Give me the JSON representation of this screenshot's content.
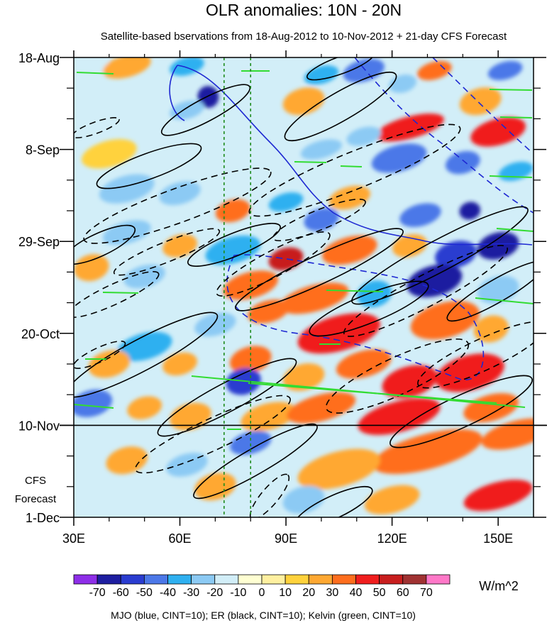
{
  "chart_data": {
    "type": "heatmap",
    "title": "OLR anomalies: 10N - 20N",
    "subtitle": "Satellite-based bservations from 18-Aug-2012 to 10-Nov-2012 + 21-day CFS Forecast",
    "x_ticks": [
      {
        "value": 30,
        "label": "30E"
      },
      {
        "value": 60,
        "label": "60E"
      },
      {
        "value": 90,
        "label": "90E"
      },
      {
        "value": 120,
        "label": "120E"
      },
      {
        "value": 150,
        "label": "150E"
      }
    ],
    "x_range": [
      30,
      160
    ],
    "y_ticks": [
      {
        "day": 0,
        "label": "18-Aug"
      },
      {
        "day": 21,
        "label": "8-Sep"
      },
      {
        "day": 42,
        "label": "29-Sep"
      },
      {
        "day": 63,
        "label": "20-Oct"
      },
      {
        "day": 84,
        "label": "10-Nov"
      },
      {
        "day": 105,
        "label": "1-Dec"
      }
    ],
    "y_range_days": [
      0,
      105
    ],
    "forecast_start_day": 84,
    "forecast_label_lines": [
      "CFS",
      "Forecast"
    ],
    "reference_lines_lon": [
      72.5,
      80
    ],
    "colorbar": {
      "unit": "W/m^2",
      "labels": [
        "-70",
        "-60",
        "-50",
        "-40",
        "-30",
        "-20",
        "-10",
        "0",
        "10",
        "20",
        "30",
        "40",
        "50",
        "60",
        "70"
      ],
      "colors": [
        "#8e2ee8",
        "#1e1ea0",
        "#2a3cd0",
        "#4c78e8",
        "#2fb0f0",
        "#8ccaf4",
        "#d2eef8",
        "#ffffd2",
        "#fff0a0",
        "#ffd23c",
        "#ffa832",
        "#ff6e1e",
        "#f01e1e",
        "#c81e1e",
        "#a03232",
        "#ff78c8"
      ]
    },
    "footer": "MJO (blue, CINT=10); ER (black, CINT=10); Kelvin (green, CINT=10)",
    "contour_colors": {
      "mjo": "#1e28d2",
      "er": "#000000",
      "kelvin": "#32dc32"
    },
    "blobs": [
      {
        "lon": 35,
        "day": 3,
        "rx": 6,
        "ry": 2,
        "v": -12
      },
      {
        "lon": 45,
        "day": 2,
        "rx": 7,
        "ry": 2.5,
        "v": 22
      },
      {
        "lon": 62,
        "day": 2,
        "rx": 5,
        "ry": 2,
        "v": -35
      },
      {
        "lon": 68,
        "day": 9,
        "rx": 3,
        "ry": 2.5,
        "v": -62
      },
      {
        "lon": 62,
        "day": 12,
        "rx": 5,
        "ry": 2,
        "v": -25
      },
      {
        "lon": 78,
        "day": 5,
        "rx": 6,
        "ry": 3,
        "v": -18
      },
      {
        "lon": 95,
        "day": 10,
        "rx": 6,
        "ry": 3,
        "v": 25
      },
      {
        "lon": 100,
        "day": 4,
        "rx": 5,
        "ry": 2,
        "v": -40
      },
      {
        "lon": 112,
        "day": 3,
        "rx": 6,
        "ry": 2.5,
        "v": -45
      },
      {
        "lon": 123,
        "day": 6,
        "rx": 4,
        "ry": 2,
        "v": -28
      },
      {
        "lon": 132,
        "day": 3,
        "rx": 5,
        "ry": 2,
        "v": 30
      },
      {
        "lon": 152,
        "day": 3,
        "rx": 5,
        "ry": 2,
        "v": -45
      },
      {
        "lon": 145,
        "day": 10,
        "rx": 6,
        "ry": 3,
        "v": 22
      },
      {
        "lon": 125,
        "day": 16,
        "rx": 10,
        "ry": 2.5,
        "v": 42
      },
      {
        "lon": 150,
        "day": 17,
        "rx": 8,
        "ry": 3,
        "v": 48
      },
      {
        "lon": 112,
        "day": 18,
        "rx": 5,
        "ry": 2,
        "v": -22
      },
      {
        "lon": 100,
        "day": 21,
        "rx": 6,
        "ry": 2,
        "v": -30
      },
      {
        "lon": 122,
        "day": 23,
        "rx": 8,
        "ry": 3,
        "v": -48
      },
      {
        "lon": 140,
        "day": 24,
        "rx": 5,
        "ry": 2.5,
        "v": -45
      },
      {
        "lon": 155,
        "day": 26,
        "rx": 5,
        "ry": 2,
        "v": -35
      },
      {
        "lon": 40,
        "day": 22,
        "rx": 8,
        "ry": 3,
        "v": 14
      },
      {
        "lon": 45,
        "day": 30,
        "rx": 8,
        "ry": 3,
        "v": -22
      },
      {
        "lon": 60,
        "day": 31,
        "rx": 6,
        "ry": 2.5,
        "v": -28
      },
      {
        "lon": 75,
        "day": 35,
        "rx": 5,
        "ry": 2.5,
        "v": 30
      },
      {
        "lon": 90,
        "day": 33,
        "rx": 5,
        "ry": 2,
        "v": -32
      },
      {
        "lon": 108,
        "day": 32,
        "rx": 6,
        "ry": 2.5,
        "v": 24
      },
      {
        "lon": 128,
        "day": 36,
        "rx": 6,
        "ry": 2.5,
        "v": -42
      },
      {
        "lon": 142,
        "day": 35,
        "rx": 3,
        "ry": 2,
        "v": -65
      },
      {
        "lon": 100,
        "day": 37,
        "rx": 5,
        "ry": 2.5,
        "v": -45
      },
      {
        "lon": 45,
        "day": 40,
        "rx": 7,
        "ry": 2.5,
        "v": -30
      },
      {
        "lon": 60,
        "day": 43,
        "rx": 5,
        "ry": 2.5,
        "v": 20
      },
      {
        "lon": 75,
        "day": 44,
        "rx": 8,
        "ry": 3,
        "v": -38
      },
      {
        "lon": 90,
        "day": 46,
        "rx": 5,
        "ry": 2.5,
        "v": 55
      },
      {
        "lon": 108,
        "day": 44,
        "rx": 8,
        "ry": 3,
        "v": 35
      },
      {
        "lon": 125,
        "day": 43,
        "rx": 5,
        "ry": 2.5,
        "v": 28
      },
      {
        "lon": 138,
        "day": 45,
        "rx": 6,
        "ry": 3,
        "v": -55
      },
      {
        "lon": 150,
        "day": 43,
        "rx": 6,
        "ry": 3,
        "v": -68
      },
      {
        "lon": 35,
        "day": 48,
        "rx": 5,
        "ry": 3,
        "v": 28
      },
      {
        "lon": 50,
        "day": 50,
        "rx": 6,
        "ry": 2.5,
        "v": -22
      },
      {
        "lon": 80,
        "day": 52,
        "rx": 8,
        "ry": 3,
        "v": 38
      },
      {
        "lon": 98,
        "day": 55,
        "rx": 10,
        "ry": 3,
        "v": 35
      },
      {
        "lon": 115,
        "day": 54,
        "rx": 5,
        "ry": 3,
        "v": -35
      },
      {
        "lon": 132,
        "day": 51,
        "rx": 8,
        "ry": 3.5,
        "v": -62
      },
      {
        "lon": 150,
        "day": 53,
        "rx": 6,
        "ry": 3,
        "v": -25
      },
      {
        "lon": 40,
        "day": 58,
        "rx": 8,
        "ry": 3,
        "v": -20
      },
      {
        "lon": 70,
        "day": 61,
        "rx": 6,
        "ry": 2.5,
        "v": -25
      },
      {
        "lon": 85,
        "day": 58,
        "rx": 6,
        "ry": 2.5,
        "v": 35
      },
      {
        "lon": 105,
        "day": 63,
        "rx": 12,
        "ry": 4,
        "v": 40
      },
      {
        "lon": 135,
        "day": 60,
        "rx": 10,
        "ry": 4,
        "v": 38
      },
      {
        "lon": 148,
        "day": 62,
        "rx": 5,
        "ry": 3,
        "v": 20
      },
      {
        "lon": 50,
        "day": 66,
        "rx": 8,
        "ry": 3,
        "v": -40
      },
      {
        "lon": 40,
        "day": 70,
        "rx": 6,
        "ry": 3,
        "v": 25
      },
      {
        "lon": 60,
        "day": 70,
        "rx": 5,
        "ry": 2.5,
        "v": 28
      },
      {
        "lon": 80,
        "day": 69,
        "rx": 6,
        "ry": 3,
        "v": 30
      },
      {
        "lon": 78,
        "day": 74,
        "rx": 5,
        "ry": 3,
        "v": -55
      },
      {
        "lon": 95,
        "day": 73,
        "rx": 6,
        "ry": 3,
        "v": 22
      },
      {
        "lon": 112,
        "day": 70,
        "rx": 8,
        "ry": 3,
        "v": 36
      },
      {
        "lon": 125,
        "day": 74,
        "rx": 8,
        "ry": 3.5,
        "v": 48
      },
      {
        "lon": 142,
        "day": 72,
        "rx": 10,
        "ry": 4,
        "v": 40
      },
      {
        "lon": 35,
        "day": 79,
        "rx": 6,
        "ry": 3,
        "v": -42
      },
      {
        "lon": 50,
        "day": 80,
        "rx": 5,
        "ry": 2.5,
        "v": 22
      },
      {
        "lon": 63,
        "day": 82,
        "rx": 6,
        "ry": 3,
        "v": 28
      },
      {
        "lon": 85,
        "day": 82,
        "rx": 8,
        "ry": 3,
        "v": 25
      },
      {
        "lon": 100,
        "day": 80,
        "rx": 10,
        "ry": 3,
        "v": 35
      },
      {
        "lon": 122,
        "day": 82,
        "rx": 12,
        "ry": 3.5,
        "v": 42
      },
      {
        "lon": 148,
        "day": 80,
        "rx": 8,
        "ry": 3,
        "v": 36
      },
      {
        "lon": 155,
        "day": 86,
        "rx": 10,
        "ry": 3,
        "v": 35
      },
      {
        "lon": 130,
        "day": 90,
        "rx": 16,
        "ry": 4,
        "v": 30
      },
      {
        "lon": 105,
        "day": 94,
        "rx": 12,
        "ry": 4,
        "v": 22
      },
      {
        "lon": 80,
        "day": 88,
        "rx": 6,
        "ry": 2.5,
        "v": -48
      },
      {
        "lon": 62,
        "day": 93,
        "rx": 6,
        "ry": 2.5,
        "v": -30
      },
      {
        "lon": 45,
        "day": 92,
        "rx": 6,
        "ry": 3,
        "v": 22
      },
      {
        "lon": 70,
        "day": 98,
        "rx": 6,
        "ry": 3,
        "v": 25
      },
      {
        "lon": 95,
        "day": 101,
        "rx": 6,
        "ry": 3,
        "v": -25
      },
      {
        "lon": 120,
        "day": 101,
        "rx": 8,
        "ry": 3,
        "v": 28
      },
      {
        "lon": 150,
        "day": 100,
        "rx": 10,
        "ry": 3,
        "v": 40
      },
      {
        "lon": 45,
        "day": 103,
        "rx": 6,
        "ry": 2.5,
        "v": -15
      }
    ]
  }
}
